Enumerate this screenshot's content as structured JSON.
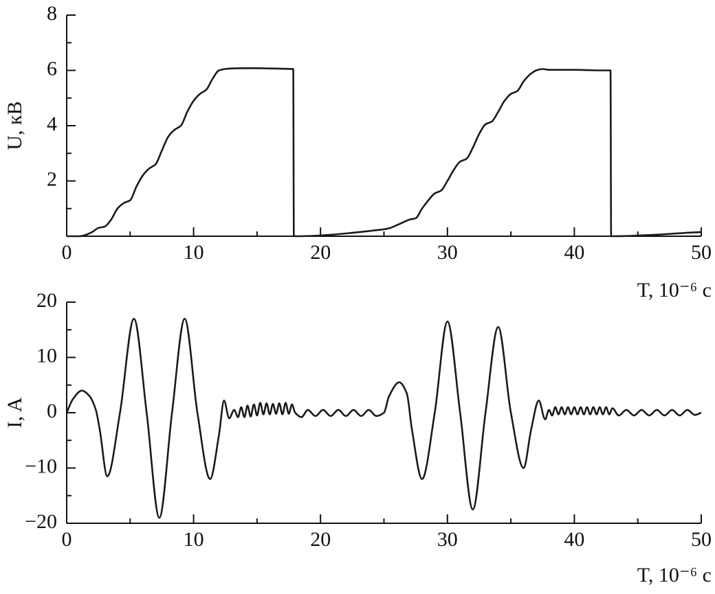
{
  "chart_data": [
    {
      "type": "line",
      "ylabel": "U, кВ",
      "xlabel": "T, 10⁻⁶ c",
      "color": "#1a1a1a",
      "xlim": [
        0,
        50
      ],
      "ylim": [
        0,
        8
      ],
      "xticks": [
        0,
        10,
        20,
        30,
        40,
        50
      ],
      "xminorticks": [
        5,
        15,
        25,
        35,
        45
      ],
      "yticks": [
        2,
        4,
        6,
        8
      ],
      "yminorticks": [
        1,
        3,
        5,
        7
      ],
      "x": [
        0,
        1,
        1.5,
        2,
        2.5,
        3,
        3.5,
        4,
        4.5,
        5,
        5.5,
        6,
        6.5,
        7,
        7.5,
        8,
        8.5,
        9,
        9.5,
        10,
        10.5,
        11,
        11.5,
        12,
        12.5,
        13,
        14,
        15,
        16,
        17,
        17.85,
        17.9,
        18,
        25,
        25.5,
        26,
        26.5,
        27,
        27.5,
        28,
        28.5,
        29,
        29.5,
        30,
        30.5,
        31,
        31.5,
        32,
        32.5,
        33,
        33.5,
        34,
        34.5,
        35,
        35.5,
        36,
        36.5,
        37,
        37.5,
        38,
        39,
        40,
        41,
        42,
        42.85,
        42.9,
        43,
        50
      ],
      "values": [
        0,
        0,
        0.05,
        0.15,
        0.3,
        0.35,
        0.6,
        1.0,
        1.2,
        1.3,
        1.8,
        2.2,
        2.45,
        2.6,
        3.1,
        3.6,
        3.85,
        4.0,
        4.5,
        4.9,
        5.15,
        5.3,
        5.7,
        6.0,
        6.05,
        6.07,
        6.08,
        6.08,
        6.07,
        6.06,
        6.05,
        0,
        0,
        0.25,
        0.3,
        0.4,
        0.5,
        0.6,
        0.65,
        1.0,
        1.3,
        1.55,
        1.65,
        2.0,
        2.4,
        2.7,
        2.8,
        3.2,
        3.7,
        4.05,
        4.15,
        4.5,
        4.9,
        5.15,
        5.25,
        5.6,
        5.85,
        6.0,
        6.05,
        6.02,
        6.02,
        6.02,
        6.01,
        6.0,
        6.0,
        0,
        0,
        0.15
      ]
    },
    {
      "type": "line",
      "ylabel": "I, A",
      "xlabel": "T, 10⁻⁶ c",
      "color": "#1a1a1a",
      "xlim": [
        0,
        50
      ],
      "ylim": [
        -20,
        20
      ],
      "xticks": [
        0,
        10,
        20,
        30,
        40,
        50
      ],
      "xminorticks": [
        5,
        15,
        25,
        35,
        45
      ],
      "yticks": [
        {
          "value": -20,
          "label": "−20"
        },
        {
          "value": -10,
          "label": "−10"
        },
        0,
        10,
        20
      ],
      "yminorticks": [
        -15,
        -5,
        5,
        15
      ],
      "x": [
        0,
        0.5,
        1.2,
        1.8,
        2.3,
        2.6,
        3.2,
        4.2,
        5.3,
        6.3,
        7.3,
        8.3,
        9.3,
        10.3,
        11.3,
        12.0,
        12.4,
        12.8,
        13.2,
        13.5,
        13.75,
        14,
        14.25,
        14.5,
        14.75,
        15,
        15.25,
        15.5,
        15.75,
        16,
        16.25,
        16.5,
        16.75,
        17,
        17.25,
        17.5,
        17.75,
        18,
        18.5,
        19,
        19.6,
        20.2,
        20.8,
        21.4,
        22,
        22.6,
        23.2,
        23.8,
        24.4,
        25,
        25.4,
        26.2,
        26.8,
        27.2,
        28,
        29,
        30,
        31,
        32,
        33,
        34,
        35,
        36,
        36.6,
        37.2,
        37.7,
        38,
        38.25,
        38.5,
        38.75,
        39,
        39.25,
        39.5,
        39.75,
        40,
        40.25,
        40.5,
        40.75,
        41,
        41.25,
        41.5,
        41.75,
        42,
        42.25,
        42.5,
        42.75,
        43,
        43.5,
        44.1,
        44.7,
        45.3,
        45.9,
        46.5,
        47.1,
        47.7,
        48.3,
        48.9,
        49.5,
        50
      ],
      "values": [
        0,
        2.5,
        4,
        3,
        0.5,
        -3,
        -11.5,
        0,
        17,
        0,
        -19,
        0,
        17,
        0,
        -12,
        -4,
        2.2,
        -1,
        0.5,
        -0.8,
        1,
        -0.8,
        1.3,
        -0.7,
        1.5,
        -0.5,
        1.8,
        -0.3,
        1.7,
        -0.3,
        1.6,
        -0.2,
        1.7,
        -0.3,
        1.8,
        -0.2,
        1.5,
        0,
        -0.8,
        0.5,
        -0.6,
        0.5,
        -0.6,
        0.5,
        -0.6,
        0.5,
        -0.6,
        0.5,
        -0.6,
        0,
        3,
        5.5,
        3.5,
        -3,
        -12,
        0,
        16.5,
        0,
        -17.5,
        0,
        15.5,
        0,
        -10,
        -3,
        2.2,
        -1.2,
        0.5,
        -0.5,
        1,
        -0.3,
        1,
        -0.3,
        1,
        -0.3,
        1,
        -0.3,
        1,
        -0.3,
        1,
        -0.3,
        1,
        -0.3,
        1,
        -0.3,
        1,
        -0.3,
        0.8,
        -0.5,
        0.5,
        -0.5,
        0.5,
        -0.5,
        0.5,
        -0.5,
        0.5,
        -0.5,
        0.5,
        -0.4,
        0
      ]
    }
  ]
}
